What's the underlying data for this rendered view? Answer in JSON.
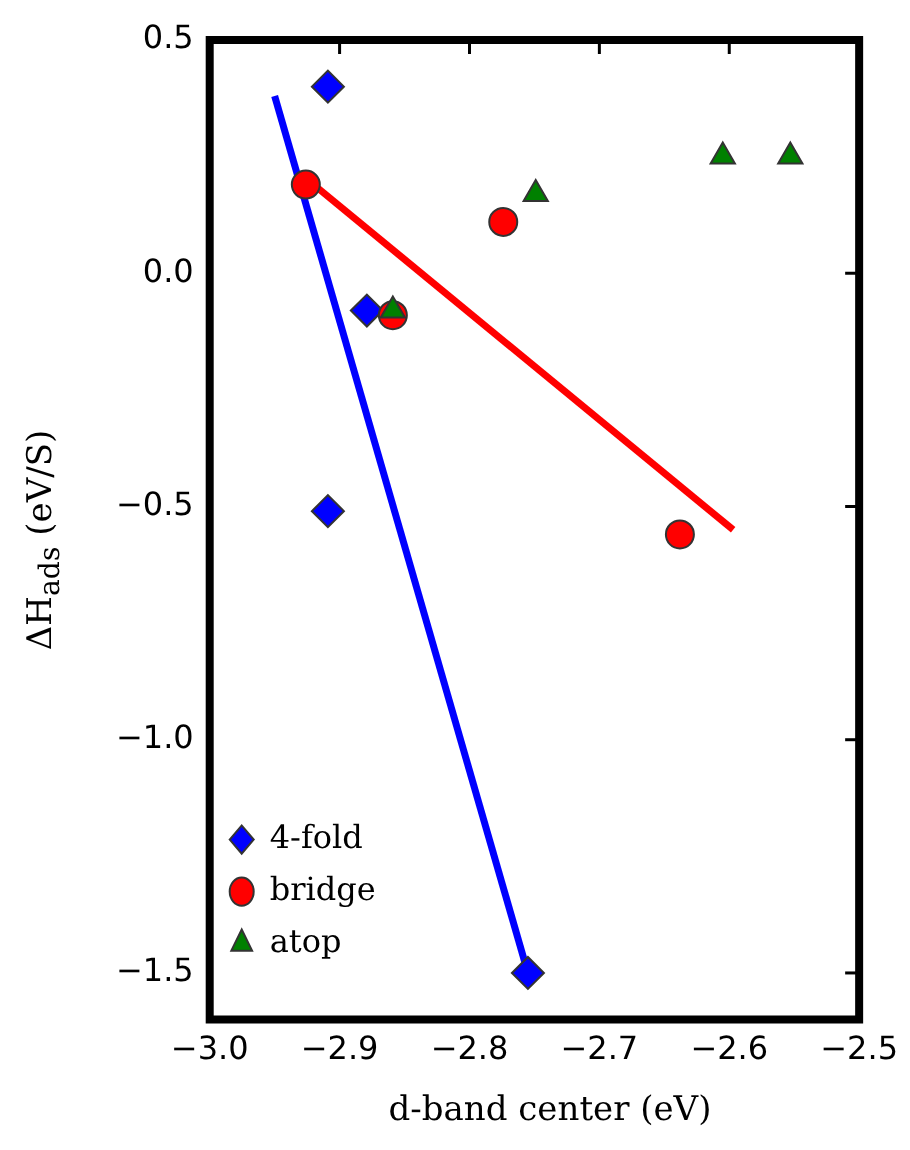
{
  "chart_data": {
    "type": "scatter",
    "xlabel": "d-band center (eV)",
    "ylabel": "ΔH$_{ads}$ (eV/S)",
    "xlim": [
      -3.0,
      -2.5
    ],
    "ylim": [
      -1.6,
      0.5
    ],
    "xticks": [
      {
        "value": -3.0,
        "label": "−3.0"
      },
      {
        "value": -2.9,
        "label": "−2.9"
      },
      {
        "value": -2.8,
        "label": "−2.8"
      },
      {
        "value": -2.7,
        "label": "−2.7"
      },
      {
        "value": -2.6,
        "label": "−2.6"
      },
      {
        "value": -2.5,
        "label": "−2.5"
      }
    ],
    "yticks": [
      {
        "value": -1.5,
        "label": "−1.5"
      },
      {
        "value": -1.0,
        "label": "−1.0"
      },
      {
        "value": -0.5,
        "label": "−0.5"
      },
      {
        "value": 0.0,
        "label": "0.0"
      },
      {
        "value": 0.5,
        "label": "0.5"
      }
    ],
    "grid": false,
    "legend": "bottom left",
    "series": [
      {
        "type": "line",
        "color": "#0000ff",
        "x": [
          -2.95,
          -2.755
        ],
        "values": [
          0.38,
          -1.5
        ],
        "marker": "none"
      },
      {
        "type": "line",
        "color": "#ff0000",
        "x": [
          -2.92,
          -2.597
        ],
        "values": [
          0.19,
          -0.55
        ],
        "marker": "none"
      },
      {
        "name": "4-fold",
        "color": "#0000ff",
        "marker": "diamond",
        "x": [
          -2.909,
          -2.879,
          -2.909,
          -2.755
        ],
        "values": [
          0.4,
          -0.08,
          -0.51,
          -1.5
        ]
      },
      {
        "name": "bridge",
        "color": "#ff0000",
        "marker": "circle",
        "x": [
          -2.926,
          -2.774,
          -2.859,
          -2.638
        ],
        "values": [
          0.19,
          0.11,
          -0.09,
          -0.56
        ]
      },
      {
        "name": "atop",
        "color": "#008000",
        "marker": "triangle",
        "x": [
          -2.749,
          -2.859,
          -2.605,
          -2.553
        ],
        "values": [
          0.17,
          -0.08,
          0.25,
          0.25
        ]
      }
    ]
  }
}
